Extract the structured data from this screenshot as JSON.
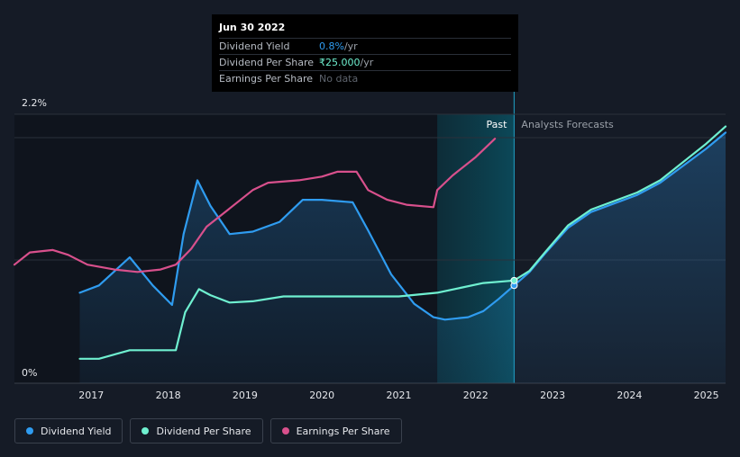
{
  "tooltip": {
    "date": "Jun 30 2022",
    "rows": [
      {
        "label": "Dividend Yield",
        "value": "0.8%",
        "unit": " /yr",
        "color": "#2f9cf0"
      },
      {
        "label": "Dividend Per Share",
        "value": "₹25.000",
        "unit": " /yr",
        "color": "#6ff0d0"
      },
      {
        "label": "Earnings Per Share",
        "value": "No data",
        "unit": "",
        "color": "#5e646d"
      }
    ]
  },
  "regions": {
    "past": "Past",
    "forecast": "Analysts Forecasts"
  },
  "legend": [
    {
      "label": "Dividend Yield",
      "color": "#2f9cf0"
    },
    {
      "label": "Dividend Per Share",
      "color": "#6ff0d0"
    },
    {
      "label": "Earnings Per Share",
      "color": "#d8508c"
    }
  ],
  "chart_data": {
    "type": "line",
    "title": "",
    "xlabel": "",
    "ylabel": "",
    "xlim": [
      2016.0,
      2025.25
    ],
    "ylim": [
      0,
      2.2
    ],
    "y_tick_labels": [
      {
        "value": 0,
        "label": "0%"
      },
      {
        "value": 2.2,
        "label": "2.2%"
      }
    ],
    "x_ticks": [
      2017,
      2018,
      2019,
      2020,
      2021,
      2022,
      2023,
      2024,
      2025
    ],
    "highlight_x": 2022.5,
    "highlight_band": [
      2021.5,
      2022.5
    ],
    "series": [
      {
        "name": "Dividend Yield",
        "color": "#2f9cf0",
        "area": true,
        "points": [
          [
            2016.85,
            0.74
          ],
          [
            2017.1,
            0.8
          ],
          [
            2017.5,
            1.03
          ],
          [
            2017.8,
            0.8
          ],
          [
            2018.05,
            0.64
          ],
          [
            2018.2,
            1.22
          ],
          [
            2018.38,
            1.66
          ],
          [
            2018.55,
            1.45
          ],
          [
            2018.8,
            1.22
          ],
          [
            2019.1,
            1.24
          ],
          [
            2019.45,
            1.32
          ],
          [
            2019.75,
            1.5
          ],
          [
            2020.0,
            1.5
          ],
          [
            2020.4,
            1.48
          ],
          [
            2020.6,
            1.25
          ],
          [
            2020.9,
            0.89
          ],
          [
            2021.2,
            0.65
          ],
          [
            2021.45,
            0.54
          ],
          [
            2021.6,
            0.52
          ],
          [
            2021.9,
            0.54
          ],
          [
            2022.1,
            0.59
          ],
          [
            2022.3,
            0.69
          ],
          [
            2022.5,
            0.8
          ],
          [
            2022.7,
            0.91
          ],
          [
            2022.9,
            1.06
          ],
          [
            2023.2,
            1.27
          ],
          [
            2023.5,
            1.4
          ],
          [
            2023.8,
            1.47
          ],
          [
            2024.1,
            1.54
          ],
          [
            2024.4,
            1.64
          ],
          [
            2024.7,
            1.78
          ],
          [
            2025.0,
            1.92
          ],
          [
            2025.25,
            2.05
          ]
        ]
      },
      {
        "name": "Dividend Per Share",
        "color": "#6ff0d0",
        "area": false,
        "points": [
          [
            2016.85,
            0.2
          ],
          [
            2017.1,
            0.2
          ],
          [
            2017.5,
            0.27
          ],
          [
            2017.8,
            0.27
          ],
          [
            2018.1,
            0.27
          ],
          [
            2018.22,
            0.58
          ],
          [
            2018.4,
            0.77
          ],
          [
            2018.55,
            0.72
          ],
          [
            2018.8,
            0.66
          ],
          [
            2019.1,
            0.67
          ],
          [
            2019.5,
            0.71
          ],
          [
            2020.0,
            0.71
          ],
          [
            2020.5,
            0.71
          ],
          [
            2021.0,
            0.71
          ],
          [
            2021.5,
            0.74
          ],
          [
            2021.8,
            0.78
          ],
          [
            2022.1,
            0.82
          ],
          [
            2022.5,
            0.84
          ],
          [
            2022.7,
            0.92
          ],
          [
            2022.9,
            1.07
          ],
          [
            2023.2,
            1.29
          ],
          [
            2023.5,
            1.42
          ],
          [
            2023.8,
            1.49
          ],
          [
            2024.1,
            1.56
          ],
          [
            2024.4,
            1.66
          ],
          [
            2024.7,
            1.81
          ],
          [
            2025.0,
            1.96
          ],
          [
            2025.25,
            2.1
          ]
        ]
      },
      {
        "name": "Earnings Per Share",
        "color": "#d8508c",
        "area": false,
        "points": [
          [
            2016.0,
            0.97
          ],
          [
            2016.2,
            1.07
          ],
          [
            2016.5,
            1.09
          ],
          [
            2016.7,
            1.05
          ],
          [
            2016.95,
            0.97
          ],
          [
            2017.3,
            0.93
          ],
          [
            2017.6,
            0.91
          ],
          [
            2017.9,
            0.93
          ],
          [
            2018.1,
            0.97
          ],
          [
            2018.3,
            1.1
          ],
          [
            2018.5,
            1.28
          ],
          [
            2018.8,
            1.43
          ],
          [
            2019.1,
            1.58
          ],
          [
            2019.3,
            1.64
          ],
          [
            2019.7,
            1.66
          ],
          [
            2020.0,
            1.69
          ],
          [
            2020.2,
            1.73
          ],
          [
            2020.45,
            1.73
          ],
          [
            2020.6,
            1.58
          ],
          [
            2020.85,
            1.5
          ],
          [
            2021.1,
            1.46
          ],
          [
            2021.45,
            1.44
          ],
          [
            2021.5,
            1.58
          ],
          [
            2021.7,
            1.7
          ],
          [
            2022.0,
            1.85
          ],
          [
            2022.2,
            1.97
          ],
          [
            2022.25,
            2.0
          ]
        ]
      }
    ]
  }
}
